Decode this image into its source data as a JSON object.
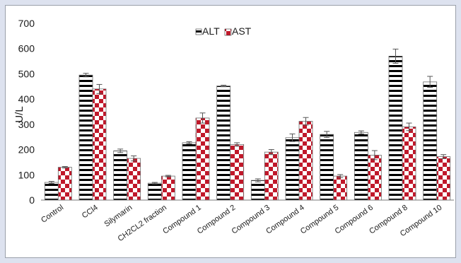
{
  "chart_data": {
    "type": "bar",
    "title": "",
    "xlabel": "",
    "ylabel": "U/L",
    "ylim": [
      0,
      700
    ],
    "yticks": [
      0,
      100,
      200,
      300,
      400,
      500,
      600,
      700
    ],
    "grid": false,
    "legend_position": "top-center",
    "categories": [
      "Control",
      "CCl4",
      "Silymarin",
      "CH2CL2 fraction",
      "Compound 1",
      "Compound 2",
      "Compound 3",
      "Compound 4",
      "Compound 5",
      "Compound 6",
      "Compound 8",
      "Compound 10"
    ],
    "series": [
      {
        "name": "ALT",
        "pattern": "horizontal-stripes",
        "color": "#000000",
        "values": [
          70,
          495,
          195,
          67,
          227,
          452,
          78,
          247,
          260,
          268,
          570,
          468
        ],
        "errors": [
          4,
          7,
          7,
          3,
          4,
          3,
          6,
          15,
          12,
          6,
          28,
          22
        ]
      },
      {
        "name": "AST",
        "pattern": "checkerboard",
        "color": "#c0182a",
        "values": [
          130,
          440,
          165,
          95,
          325,
          220,
          190,
          312,
          95,
          178,
          290,
          172
        ],
        "errors": [
          3,
          18,
          10,
          3,
          20,
          7,
          10,
          15,
          6,
          18,
          15,
          8
        ]
      }
    ]
  }
}
